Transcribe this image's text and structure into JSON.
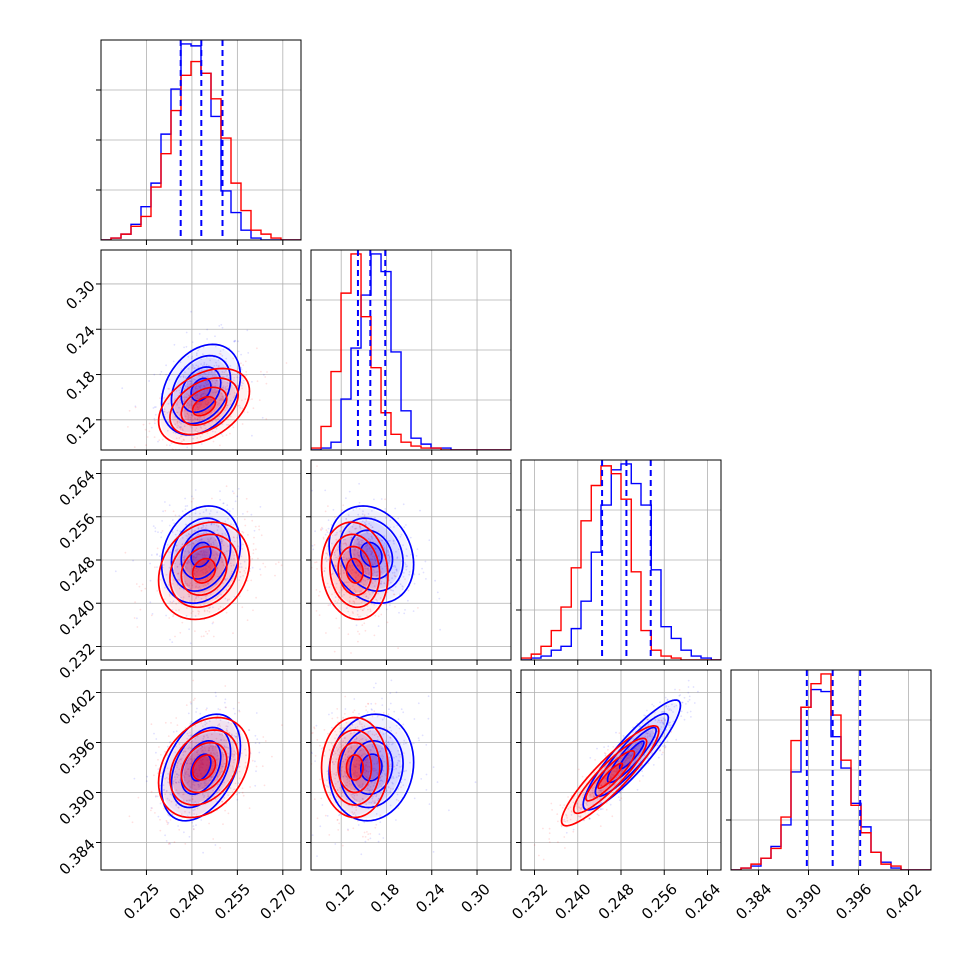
{
  "chart_data": {
    "type": "corner",
    "title": "",
    "series": [
      {
        "color": "#0000ff"
      },
      {
        "color": "#ff0000"
      }
    ],
    "parameters": [
      {
        "range": [
          0.21,
          0.276
        ],
        "ticks": [
          0.225,
          0.24,
          0.255,
          0.27
        ],
        "tick_labels": [
          "0.225",
          "0.240",
          "0.255",
          "0.270"
        ],
        "quantiles": [
          0.2363,
          0.2431,
          0.2501
        ],
        "hist_max": 1.0
      },
      {
        "range": [
          0.08,
          0.345
        ],
        "ticks": [
          0.12,
          0.18,
          0.24,
          0.3
        ],
        "tick_labels": [
          "0.12",
          "0.18",
          "0.24",
          "0.30"
        ],
        "quantiles": [
          0.1422,
          0.1586,
          0.1784
        ],
        "hist_max": 1.0
      },
      {
        "range": [
          0.2295,
          0.2665
        ],
        "ticks": [
          0.232,
          0.24,
          0.248,
          0.256,
          0.264
        ],
        "tick_labels": [
          "0.232",
          "0.240",
          "0.248",
          "0.256",
          "0.264"
        ],
        "quantiles": [
          0.2445,
          0.249,
          0.2535
        ],
        "hist_max": 1.0
      },
      {
        "range": [
          0.3807,
          0.4047
        ],
        "ticks": [
          0.384,
          0.39,
          0.396,
          0.402
        ],
        "tick_labels": [
          "0.384",
          "0.390",
          "0.396",
          "0.402"
        ],
        "quantiles": [
          0.3898,
          0.3929,
          0.3962
        ],
        "hist_max": 1.0
      }
    ],
    "histograms": [
      {
        "param": 0,
        "bins": [
          0.21,
          0.2133,
          0.2166,
          0.2199,
          0.2232,
          0.2265,
          0.2298,
          0.2331,
          0.2364,
          0.2397,
          0.243,
          0.2463,
          0.2496,
          0.2529,
          0.2562,
          0.2595,
          0.2628,
          0.2661,
          0.2694,
          0.2727,
          0.276
        ],
        "blue": [
          0.0,
          0.01,
          0.03,
          0.08,
          0.17,
          0.29,
          0.54,
          0.77,
          1.0,
          0.99,
          0.85,
          0.63,
          0.25,
          0.14,
          0.05,
          0.01,
          0.0,
          0.0,
          0.0,
          0.0
        ],
        "red": [
          0.0,
          0.01,
          0.03,
          0.07,
          0.12,
          0.27,
          0.44,
          0.66,
          0.84,
          0.91,
          0.85,
          0.72,
          0.52,
          0.29,
          0.15,
          0.05,
          0.03,
          0.01,
          0.0,
          0.0
        ]
      },
      {
        "param": 1,
        "bins": [
          0.08,
          0.0933,
          0.1065,
          0.1198,
          0.133,
          0.1463,
          0.1595,
          0.1728,
          0.186,
          0.1993,
          0.2125,
          0.2258,
          0.239,
          0.2523,
          0.2655,
          0.2788,
          0.292,
          0.3053,
          0.3185,
          0.3318,
          0.345
        ],
        "blue": [
          0.0,
          0.01,
          0.04,
          0.26,
          0.52,
          0.79,
          1.0,
          0.91,
          0.5,
          0.2,
          0.06,
          0.03,
          0.01,
          0.01,
          0.0,
          0.0,
          0.0,
          0.0,
          0.0,
          0.0
        ],
        "red": [
          0.01,
          0.12,
          0.4,
          0.8,
          1.0,
          0.68,
          0.42,
          0.19,
          0.08,
          0.04,
          0.02,
          0.01,
          0.01,
          0.0,
          0.0,
          0.0,
          0.0,
          0.0,
          0.0,
          0.0
        ]
      },
      {
        "param": 2,
        "bins": [
          0.2295,
          0.2314,
          0.2332,
          0.2351,
          0.2369,
          0.2388,
          0.2406,
          0.2425,
          0.2443,
          0.2462,
          0.248,
          0.2499,
          0.2517,
          0.2536,
          0.2554,
          0.2573,
          0.2591,
          0.261,
          0.2628,
          0.2647,
          0.2665
        ],
        "blue": [
          0.0,
          0.01,
          0.02,
          0.05,
          0.07,
          0.16,
          0.3,
          0.55,
          0.79,
          0.97,
          1.0,
          0.9,
          0.79,
          0.46,
          0.17,
          0.11,
          0.05,
          0.02,
          0.01,
          0.0
        ],
        "red": [
          0.01,
          0.03,
          0.07,
          0.15,
          0.27,
          0.47,
          0.71,
          0.89,
          0.99,
          0.95,
          0.82,
          0.45,
          0.15,
          0.05,
          0.02,
          0.01,
          0.0,
          0.0,
          0.0,
          0.0
        ]
      },
      {
        "param": 3,
        "bins": [
          0.3807,
          0.3819,
          0.3831,
          0.3843,
          0.3855,
          0.3867,
          0.3879,
          0.3891,
          0.3903,
          0.3915,
          0.3927,
          0.3939,
          0.3951,
          0.3963,
          0.3975,
          0.3987,
          0.3999,
          0.4011,
          0.4023,
          0.4035,
          0.4047
        ],
        "blue": [
          0.0,
          0.01,
          0.02,
          0.06,
          0.12,
          0.23,
          0.5,
          0.83,
          0.92,
          0.91,
          0.68,
          0.52,
          0.34,
          0.22,
          0.09,
          0.04,
          0.01,
          0.0,
          0.0,
          0.0
        ],
        "red": [
          0.0,
          0.01,
          0.03,
          0.06,
          0.11,
          0.27,
          0.66,
          0.83,
          0.95,
          1.0,
          0.79,
          0.56,
          0.33,
          0.19,
          0.09,
          0.03,
          0.02,
          0.0,
          0.0,
          0.0
        ]
      }
    ],
    "joint": [
      {
        "x": 0,
        "y": 1,
        "blue": {
          "center": [
            0.243,
            0.16
          ],
          "sx": 0.0065,
          "sy": 0.03,
          "rho": 0.3
        },
        "red": {
          "center": [
            0.244,
            0.138
          ],
          "sx": 0.0075,
          "sy": 0.025,
          "rho": 0.4
        }
      },
      {
        "x": 0,
        "y": 2,
        "blue": {
          "center": [
            0.243,
            0.249
          ],
          "sx": 0.0065,
          "sy": 0.0045,
          "rho": 0.2
        },
        "red": {
          "center": [
            0.244,
            0.246
          ],
          "sx": 0.0075,
          "sy": 0.0045,
          "rho": 0.2
        }
      },
      {
        "x": 1,
        "y": 2,
        "blue": {
          "center": [
            0.16,
            0.249
          ],
          "sx": 0.028,
          "sy": 0.0045,
          "rho": -0.2
        },
        "red": {
          "center": [
            0.138,
            0.246
          ],
          "sx": 0.022,
          "sy": 0.0045,
          "rho": -0.1
        }
      },
      {
        "x": 0,
        "y": 3,
        "blue": {
          "center": [
            0.243,
            0.393
          ],
          "sx": 0.0065,
          "sy": 0.0032,
          "rho": 0.4
        },
        "red": {
          "center": [
            0.244,
            0.393
          ],
          "sx": 0.0075,
          "sy": 0.003,
          "rho": 0.3
        }
      },
      {
        "x": 1,
        "y": 3,
        "blue": {
          "center": [
            0.16,
            0.393
          ],
          "sx": 0.028,
          "sy": 0.0032,
          "rho": 0.1
        },
        "red": {
          "center": [
            0.138,
            0.393
          ],
          "sx": 0.022,
          "sy": 0.003,
          "rho": 0.0
        }
      },
      {
        "x": 2,
        "y": 3,
        "blue": {
          "center": [
            0.25,
            0.3945
          ],
          "sx": 0.0045,
          "sy": 0.0033,
          "rho": 0.9
        },
        "red": {
          "center": [
            0.246,
            0.392
          ],
          "sx": 0.0045,
          "sy": 0.003,
          "rho": 0.9
        }
      }
    ],
    "grid": true,
    "legend": "none"
  }
}
